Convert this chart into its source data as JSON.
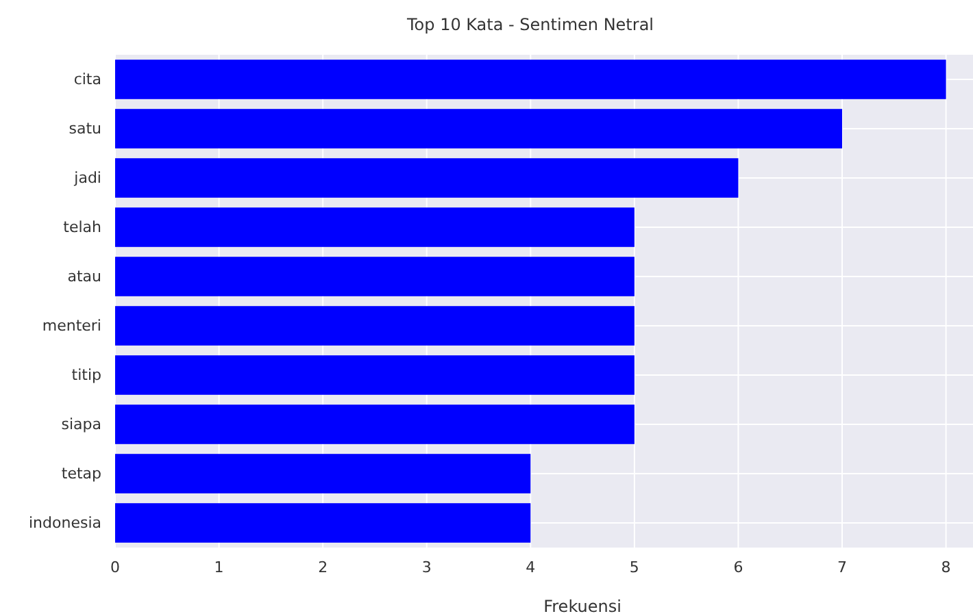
{
  "chart_data": {
    "type": "bar",
    "orientation": "horizontal",
    "title": "Top 10 Kata - Sentimen Netral",
    "xlabel": "Frekuensi",
    "categories": [
      "cita",
      "satu",
      "jadi",
      "telah",
      "atau",
      "menteri",
      "titip",
      "siapa",
      "tetap",
      "indonesia"
    ],
    "values": [
      8,
      7,
      6,
      5,
      5,
      5,
      5,
      5,
      4,
      4
    ],
    "color": "#0000ff",
    "xlim": [
      0,
      8.26
    ],
    "xticks": [
      0,
      1,
      2,
      3,
      4,
      5,
      6,
      7,
      8
    ],
    "grid": true
  }
}
